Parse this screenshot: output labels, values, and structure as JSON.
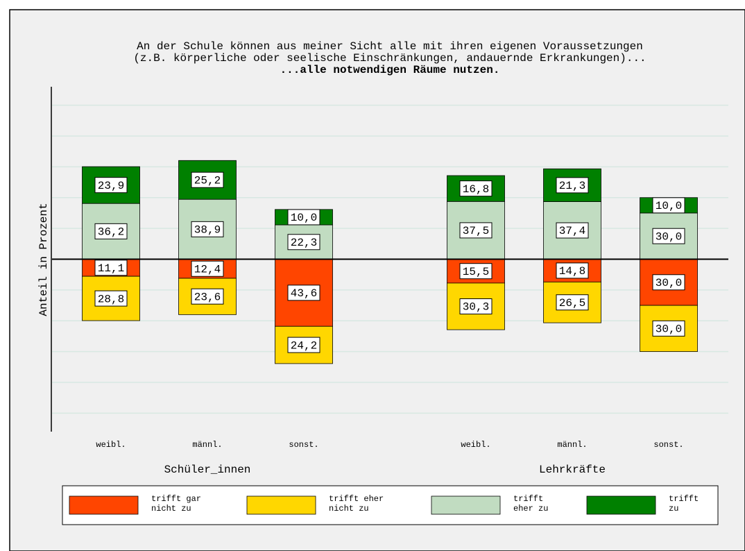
{
  "chart_data": {
    "type": "diverging_stacked_bar",
    "title": [
      "An der Schule können aus meiner Sicht alle mit ihren eigenen Voraussetzungen",
      "(z.B. körperliche oder seelische Einschränkungen, andauernde Erkrankungen)..."
    ],
    "subtitle": "...alle notwendigen Räume nutzen.",
    "y_label": "Anteil in Prozent",
    "categories": [
      "weibl.",
      "männl.",
      "sonst.",
      "weibl.",
      "männl.",
      "sonst."
    ],
    "groups": [
      {
        "label": "Schüler_innen",
        "size": 3
      },
      {
        "label": "Lehrkräfte",
        "size": 3
      }
    ],
    "series": [
      {
        "name": "trifft gar\nnicht zu",
        "color": "#ff4500",
        "values": [
          -11.1,
          -12.4,
          -43.6,
          -15.5,
          -14.8,
          -30.0
        ],
        "value_labels": [
          "11,1",
          "12,4",
          "43,6",
          "15,5",
          "14,8",
          "30,0"
        ]
      },
      {
        "name": "trifft eher\nnicht zu",
        "color": "#ffd700",
        "values": [
          -28.8,
          -23.6,
          -24.2,
          -30.3,
          -26.5,
          -30.0
        ],
        "value_labels": [
          "28,8",
          "23,6",
          "24,2",
          "30,3",
          "26,5",
          "30,0"
        ]
      },
      {
        "name": "trifft\neher zu",
        "color": "#c1dcc1",
        "values": [
          36.2,
          38.9,
          22.3,
          37.5,
          37.4,
          30.0
        ],
        "value_labels": [
          "36,2",
          "38,9",
          "22,3",
          "37,5",
          "37,4",
          "30,0"
        ]
      },
      {
        "name": "trifft\nzu",
        "color": "#008000",
        "values": [
          23.9,
          25.2,
          10.0,
          16.8,
          21.3,
          10.0
        ],
        "value_labels": [
          "23,9",
          "25,2",
          "10,0",
          "16,8",
          "21,3",
          "10,0"
        ]
      }
    ],
    "ylim": [
      -112,
      112
    ],
    "yticks": [
      -100,
      -80,
      -60,
      -40,
      -20,
      0,
      20,
      40,
      60,
      80,
      100
    ],
    "grid": true
  }
}
